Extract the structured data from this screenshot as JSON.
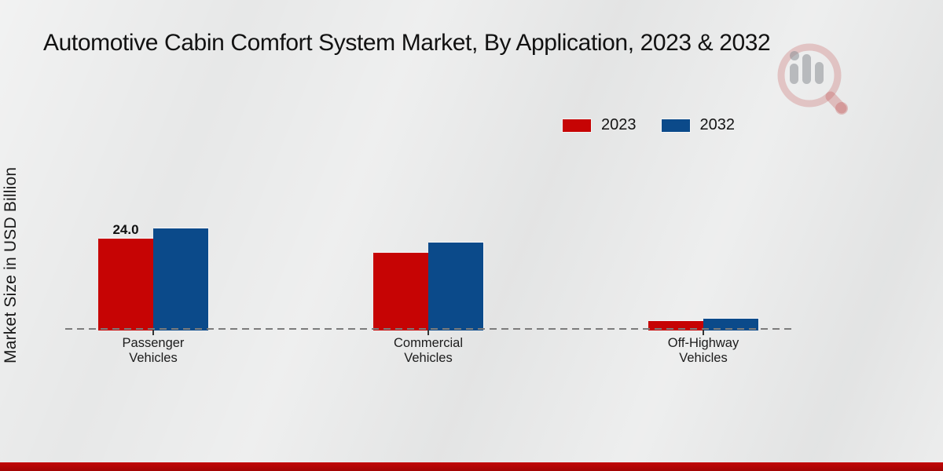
{
  "title": "Automotive Cabin Comfort System Market, By Application, 2023 & 2032",
  "y_axis_label": "Market Size in USD Billion",
  "legend": {
    "items": [
      {
        "label": "2023",
        "color": "#c60404"
      },
      {
        "label": "2032",
        "color": "#0b4a8a"
      }
    ]
  },
  "chart_data": {
    "type": "bar",
    "categories": [
      "Passenger Vehicles",
      "Commercial Vehicles",
      "Off-Highway Vehicles"
    ],
    "series": [
      {
        "name": "2023",
        "color": "#c60404",
        "values": [
          24.0,
          20.3,
          2.5
        ],
        "value_labels": [
          "24.0",
          "",
          ""
        ]
      },
      {
        "name": "2032",
        "color": "#0b4a8a",
        "values": [
          26.7,
          23.0,
          3.1
        ],
        "value_labels": [
          "",
          "",
          ""
        ]
      }
    ],
    "title": "Automotive Cabin Comfort System Market, By Application, 2023 & 2032",
    "xlabel": "",
    "ylabel": "Market Size in USD Billion",
    "ylim": [
      0,
      30
    ],
    "grid": false,
    "y_axis_ticks": "hidden",
    "baseline_style": "dashed",
    "legend_position": "top-right"
  },
  "watermark": {
    "name": "market-research-magnifier-logo"
  },
  "colors": {
    "background": "#e7e8e8",
    "footer_bar_top": "#c10606",
    "footer_bar_bottom": "#a30404",
    "baseline_dash": "#7c7c7c",
    "title_text": "#121212"
  }
}
